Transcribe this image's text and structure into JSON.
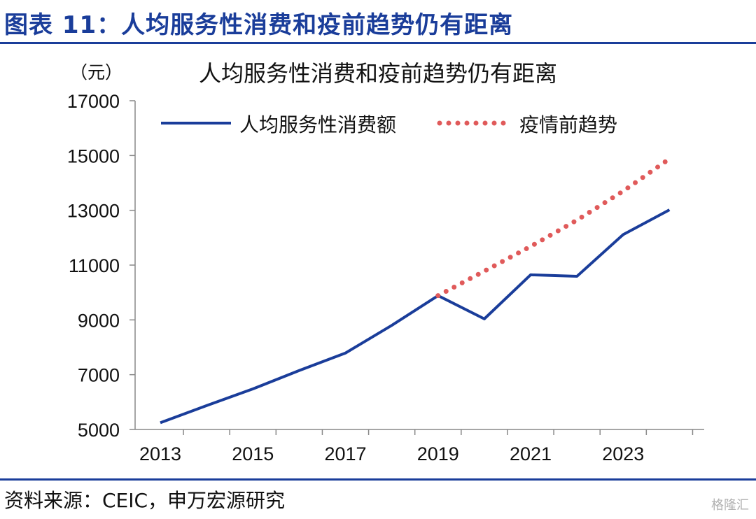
{
  "figure_title": "图表 11：人均服务性消费和疫前趋势仍有距离",
  "source_note": "资料来源：CEIC，申万宏源研究",
  "watermark": "格隆汇",
  "colors": {
    "actual": "#1a3d9a",
    "trend": "#e05a5a",
    "accent": "#1a3d9a"
  },
  "chart_data": {
    "type": "line",
    "title": "人均服务性消费和疫前趋势仍有距离",
    "ylabel": "（元）",
    "ylim": [
      5000,
      17000
    ],
    "yticks": [
      5000,
      7000,
      9000,
      11000,
      13000,
      15000,
      17000
    ],
    "xlim": [
      2013,
      2024.75
    ],
    "xticks": [
      2013,
      2015,
      2017,
      2019,
      2021,
      2023
    ],
    "legend": "top",
    "grid": false,
    "series": [
      {
        "name": "人均服务性消费额",
        "style": "solid",
        "x": [
          2013,
          2014,
          2015,
          2016,
          2017,
          2018,
          2019,
          2020,
          2021,
          2022,
          2023,
          2024
        ],
        "y": [
          5246,
          5870,
          6480,
          7150,
          7790,
          8800,
          9886,
          9037,
          10645,
          10590,
          12114,
          13016
        ]
      },
      {
        "name": "疫情前趋势",
        "style": "dotted",
        "x": [
          2019,
          2020,
          2021,
          2022,
          2023,
          2024
        ],
        "y": [
          9886,
          10780,
          11680,
          12640,
          13700,
          14880
        ]
      }
    ]
  }
}
